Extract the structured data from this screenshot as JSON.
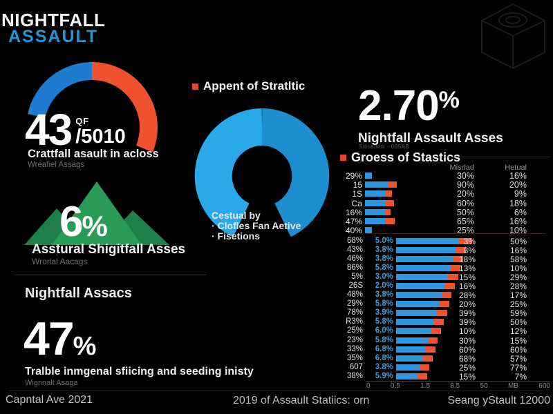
{
  "logo": {
    "line1": "NIGHTFALL",
    "line2": "ASSAULT"
  },
  "gauge_panel": {
    "value": "43",
    "of_label": "QF",
    "total": "/5010",
    "caption": "Crattfall asault in acloss",
    "subcaption": "Wreafiel Assags"
  },
  "mountain_panel": {
    "value": "6",
    "unit": "%",
    "caption": "Asstural Shigitfall Asses",
    "subcaption": "Wrorlal Aacags"
  },
  "stat_panel": {
    "title": "Nightfall Assacs",
    "value": "47",
    "unit": "%",
    "caption": "Tralble inmgenal sfiicing and seeding inisty",
    "subcaption": "Wignnalt Asaga"
  },
  "donut_panel": {
    "title": "Appent of Stratltic",
    "notes": [
      "Cestual by",
      "· Clofles Fan Aetive",
      "· Fisetions"
    ]
  },
  "highlight_panel": {
    "value": "2.70",
    "unit": "%",
    "caption": "Nightfall Assault Asses",
    "subcaption": "Sibssnew - 005AB"
  },
  "gross_panel": {
    "title": "Groess of Stastics",
    "col1": "Misrlad",
    "col2": "Hetual"
  },
  "footer": {
    "left": "Capntal Ave 2021",
    "center": "2019 of Assault Statiics: orn",
    "right": "Seang yStault 12000"
  },
  "colors": {
    "accent_blue": "#2196d3",
    "bar_blue": "#2e96dc",
    "bar_red": "#f0512f",
    "gauge_blue": "#1d7ccd",
    "gauge_orange": "#f0512f",
    "donut_light": "#2aa9ea",
    "donut_dark": "#1d8fd0",
    "green": "#2a9a58",
    "green_dark": "#1f7f49",
    "bullet_red": "#e8432e"
  },
  "chart_data": [
    {
      "type": "pie",
      "subtype": "gauge-arc",
      "title": "Crattfall asault in acloss",
      "value": 43,
      "total": 5010,
      "colors": [
        "#1d7ccd",
        "#f0512f"
      ],
      "values": [
        50,
        50
      ]
    },
    {
      "type": "pie",
      "subtype": "donut-open-bottom",
      "title": "Appent of Stratltic",
      "legend": [
        "Clofles Fan Aetive",
        "Fisetions"
      ],
      "colors": [
        "#2aa9ea",
        "#1d8fd0"
      ],
      "values": [
        50,
        50
      ]
    },
    {
      "type": "bar",
      "orientation": "horizontal",
      "title": "Groess of Stastics",
      "columns": [
        "label",
        "bar",
        "Misrlad",
        "Hetual"
      ],
      "rows": [
        {
          "label": "29%",
          "bar_blue": 10,
          "bar_red": 0,
          "col1": "30%",
          "col2": "16%"
        },
        {
          "label": "15",
          "bar_blue": 34,
          "bar_red": 12,
          "col1": "90%",
          "col2": "20%"
        },
        {
          "label": "1S",
          "bar_blue": 30,
          "bar_red": 9,
          "col1": "20%",
          "col2": "9%"
        },
        {
          "label": "Ca",
          "bar_blue": 30,
          "bar_red": 12,
          "col1": "60%",
          "col2": "18%"
        },
        {
          "label": "16%",
          "bar_blue": 30,
          "bar_red": 7,
          "col1": "50%",
          "col2": "6%"
        },
        {
          "label": "47%",
          "bar_blue": 30,
          "bar_red": 13,
          "col1": "65%",
          "col2": "16%"
        },
        {
          "label": "40%",
          "bar_blue": 10,
          "bar_red": 0,
          "col1": "25%",
          "col2": "10%"
        }
      ]
    },
    {
      "type": "bar",
      "orientation": "horizontal",
      "title": "",
      "x_ticks": [
        "0",
        "0.5",
        "1.5",
        "8.5",
        "50",
        "MB",
        "600"
      ],
      "rows": [
        {
          "label": "68%",
          "label2": "5.0%",
          "bar_blue": 91,
          "bar_red": 19,
          "col1": "3%",
          "col2": "50%"
        },
        {
          "label": "43%",
          "label2": "3.8%",
          "bar_blue": 87,
          "bar_red": 14,
          "col1": "8%",
          "col2": "16%"
        },
        {
          "label": "46%",
          "label2": "3.8%",
          "bar_blue": 83,
          "bar_red": 14,
          "col1": "18%",
          "col2": "58%"
        },
        {
          "label": "86%",
          "label2": "5.8%",
          "bar_blue": 79,
          "bar_red": 14,
          "col1": "13%",
          "col2": "10%"
        },
        {
          "label": "5%",
          "label2": "3.0%",
          "bar_blue": 75,
          "bar_red": 15,
          "col1": "15%",
          "col2": "29%"
        },
        {
          "label": "26S",
          "label2": "2.0%",
          "bar_blue": 71,
          "bar_red": 14,
          "col1": "16%",
          "col2": "28%"
        },
        {
          "label": "48%",
          "label2": "3.8%",
          "bar_blue": 67,
          "bar_red": 13,
          "col1": "28%",
          "col2": "17%"
        },
        {
          "label": "29%",
          "label2": "5.8%",
          "bar_blue": 63,
          "bar_red": 14,
          "col1": "20%",
          "col2": "25%"
        },
        {
          "label": "78%",
          "label2": "3.9%",
          "bar_blue": 59,
          "bar_red": 15,
          "col1": "39%",
          "col2": "59%"
        },
        {
          "label": "R3%",
          "label2": "5.8%",
          "bar_blue": 55,
          "bar_red": 14,
          "col1": "39%",
          "col2": "50%"
        },
        {
          "label": "25%",
          "label2": "6.0%",
          "bar_blue": 51,
          "bar_red": 14,
          "col1": "10%",
          "col2": "12%"
        },
        {
          "label": "23%",
          "label2": "5.8%",
          "bar_blue": 47,
          "bar_red": 13,
          "col1": "30%",
          "col2": "15%"
        },
        {
          "label": "33%",
          "label2": "6.8%",
          "bar_blue": 43,
          "bar_red": 14,
          "col1": "60%",
          "col2": "60%"
        },
        {
          "label": "35%",
          "label2": "6.8%",
          "bar_blue": 39,
          "bar_red": 14,
          "col1": "68%",
          "col2": "57%"
        },
        {
          "label": "607",
          "label2": "3.8%",
          "bar_blue": 35,
          "bar_red": 13,
          "col1": "25%",
          "col2": "77%"
        },
        {
          "label": "38%",
          "label2": "5.9%",
          "bar_blue": 31,
          "bar_red": 14,
          "col1": "15%",
          "col2": "7%"
        }
      ]
    }
  ]
}
